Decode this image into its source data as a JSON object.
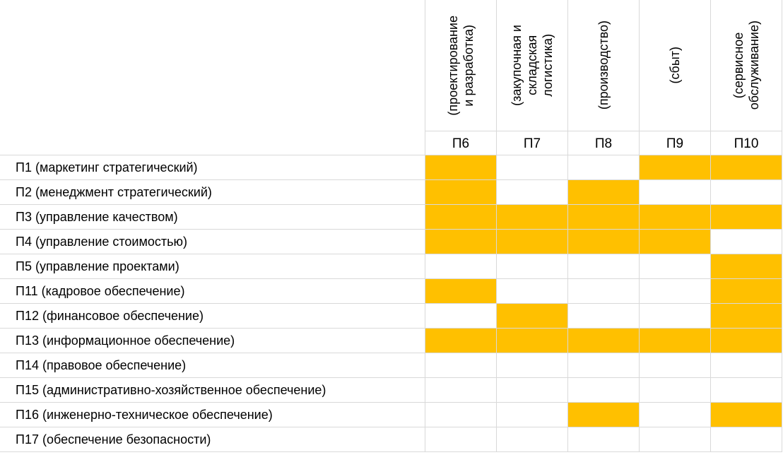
{
  "table": {
    "columns": [
      {
        "header": [
          "(проектирование",
          "и разработка)"
        ],
        "code": "П6"
      },
      {
        "header": [
          "(закупочная и",
          "складская",
          "логистика)"
        ],
        "code": "П7"
      },
      {
        "header": [
          "(производство)"
        ],
        "code": "П8"
      },
      {
        "header": [
          "(сбыт)"
        ],
        "code": "П9"
      },
      {
        "header": [
          "(сервисное",
          "обслуживание)"
        ],
        "code": "П10"
      }
    ],
    "fill_color": "#ffc000",
    "rows": [
      {
        "label": "П1 (маркетинг стратегический)",
        "cells": [
          true,
          false,
          false,
          true,
          true
        ]
      },
      {
        "label": "П2 (менеджмент стратегический)",
        "cells": [
          true,
          false,
          true,
          false,
          false
        ]
      },
      {
        "label": "П3 (управление качеством)",
        "cells": [
          true,
          true,
          true,
          true,
          true
        ]
      },
      {
        "label": "П4 (управление стоимостью)",
        "cells": [
          true,
          true,
          true,
          true,
          false
        ]
      },
      {
        "label": "П5 (управление проектами)",
        "cells": [
          false,
          false,
          false,
          false,
          true
        ]
      },
      {
        "label": "П11 (кадровое обеспечение)",
        "cells": [
          true,
          false,
          false,
          false,
          true
        ]
      },
      {
        "label": "П12 (финансовое обеспечение)",
        "cells": [
          false,
          true,
          false,
          false,
          true
        ]
      },
      {
        "label": "П13 (информационное обеспечение)",
        "cells": [
          true,
          true,
          true,
          true,
          true
        ]
      },
      {
        "label": "П14 (правовое обеспечение)",
        "cells": [
          false,
          false,
          false,
          false,
          false
        ]
      },
      {
        "label": "П15 (административно-хозяйственное обеспечение)",
        "cells": [
          false,
          false,
          false,
          false,
          false
        ]
      },
      {
        "label": "П16 (инженерно-техническое обеспечение)",
        "cells": [
          false,
          false,
          true,
          false,
          true
        ]
      },
      {
        "label": "П17 (обеспечение безопасности)",
        "cells": [
          false,
          false,
          false,
          false,
          false
        ]
      }
    ]
  }
}
